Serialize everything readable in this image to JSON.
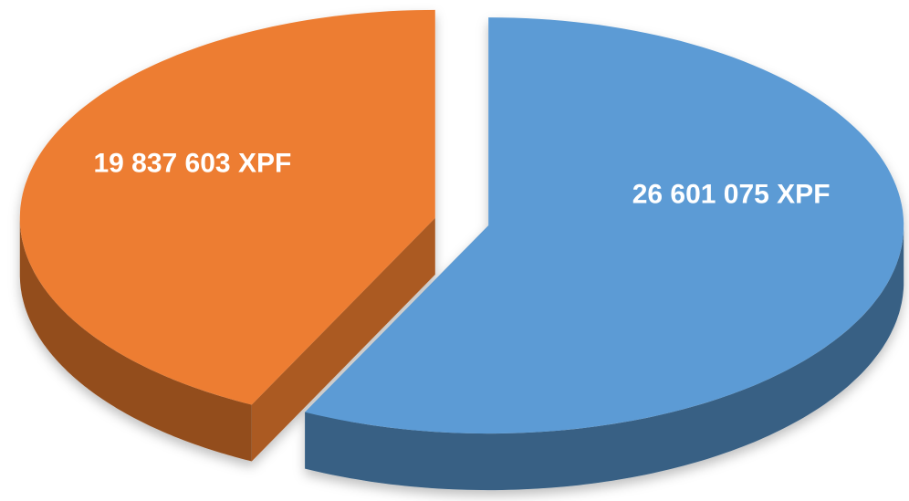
{
  "chart_data": {
    "type": "pie",
    "values": [
      26601075,
      19837603
    ],
    "value_labels": [
      "26 601 075 XPF",
      "19 837 603 XPF"
    ],
    "colors": [
      "#5b9bd5",
      "#ed7d31"
    ],
    "start_angle": 0,
    "direction": "clockwise",
    "exploded": true,
    "three_d": true
  }
}
